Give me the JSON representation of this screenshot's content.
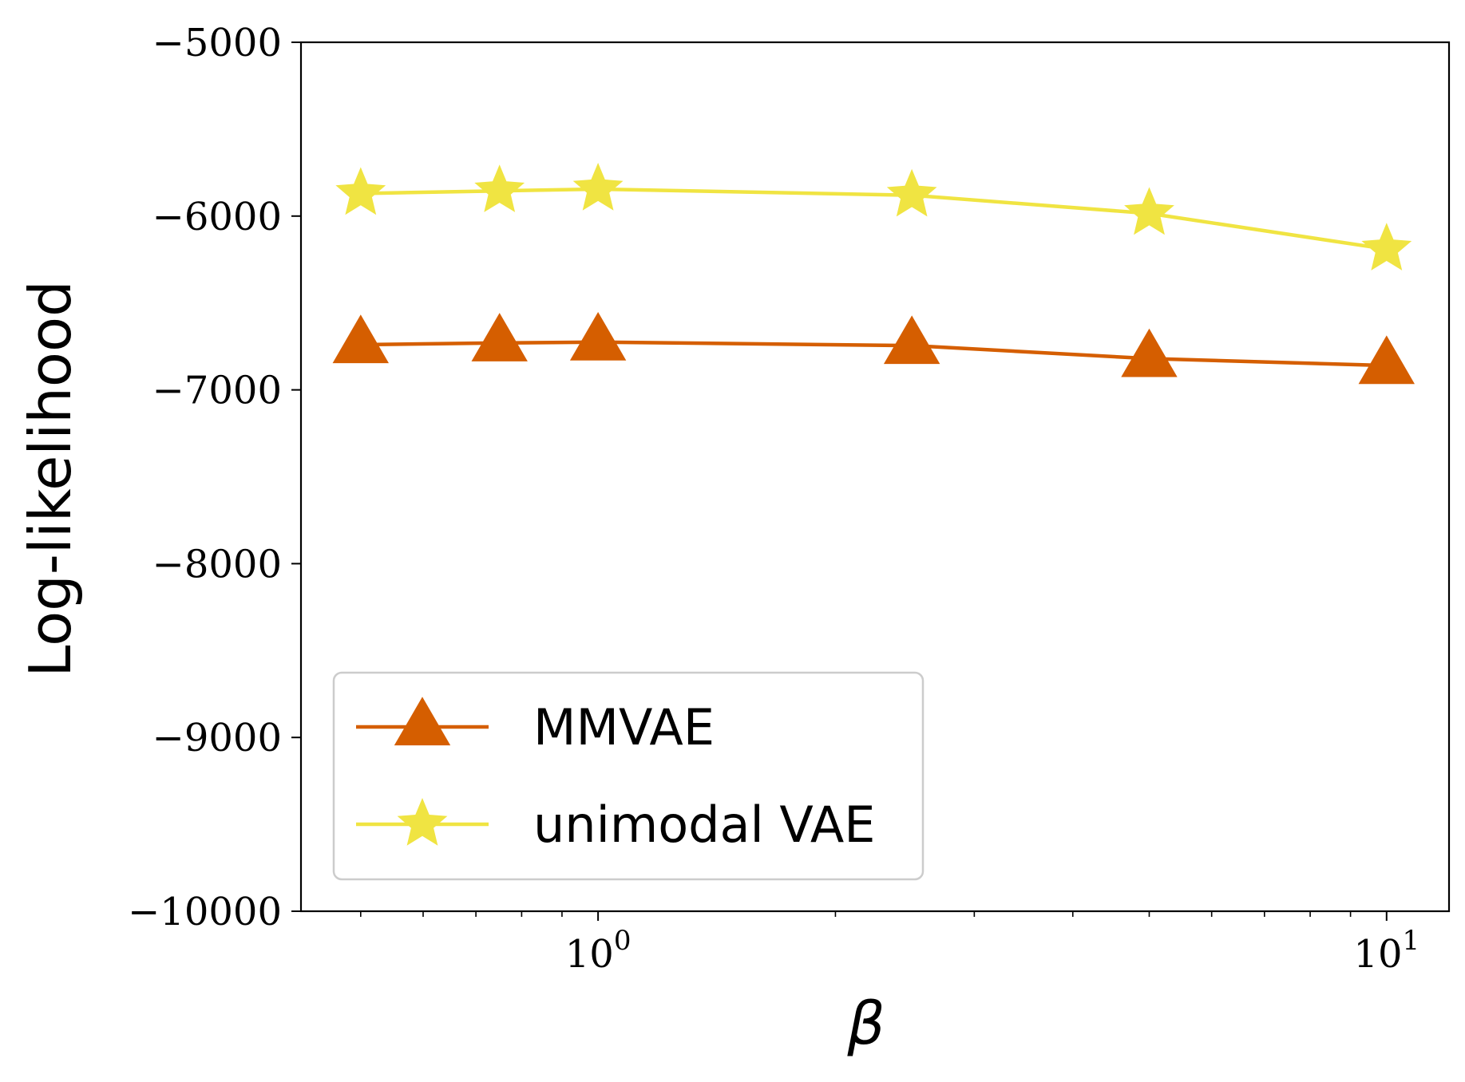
{
  "chart_data": {
    "type": "line",
    "title": "",
    "xlabel": "β",
    "ylabel": "Log-likelihood",
    "xscale": "log",
    "xlim": [
      0.42,
      12.0
    ],
    "ylim": [
      -10000,
      -5000
    ],
    "grid": false,
    "legend_position": "lower-left",
    "x_ticks": [
      1,
      10
    ],
    "x_tick_labels": [
      {
        "base": "10",
        "exp": "0"
      },
      {
        "base": "10",
        "exp": "1"
      }
    ],
    "y_ticks": [
      -5000,
      -6000,
      -7000,
      -8000,
      -9000,
      -10000
    ],
    "y_tick_labels": [
      "−5000",
      "−6000",
      "−7000",
      "−8000",
      "−9000",
      "−10000"
    ],
    "series": [
      {
        "name": "MMVAE",
        "color": "#d55e00",
        "marker": "triangle",
        "x": [
          0.5,
          0.75,
          1.0,
          2.5,
          5.0,
          10.0
        ],
        "values": [
          -6740,
          -6730,
          -6725,
          -6745,
          -6820,
          -6860
        ]
      },
      {
        "name": "unimodal VAE",
        "color": "#f0e442",
        "marker": "star",
        "x": [
          0.5,
          0.75,
          1.0,
          2.5,
          5.0,
          10.0
        ],
        "values": [
          -5870,
          -5855,
          -5845,
          -5880,
          -5985,
          -6190
        ]
      }
    ]
  }
}
